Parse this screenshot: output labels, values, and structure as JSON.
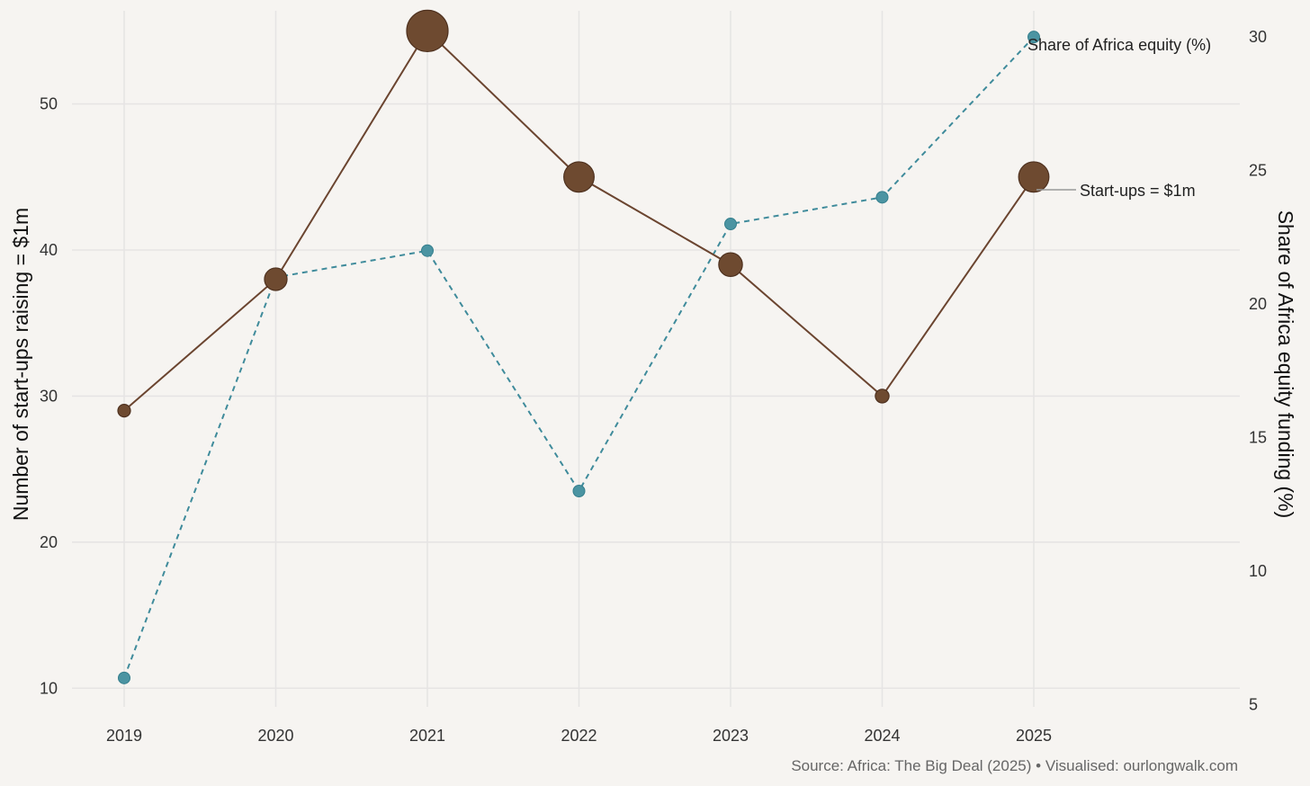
{
  "chart_data": {
    "type": "line",
    "x": [
      "2019",
      "2020",
      "2021",
      "2022",
      "2023",
      "2024",
      "2025"
    ],
    "series": [
      {
        "name": "Start-ups = $1m",
        "axis": "left",
        "style": "solid",
        "color": "#6b4530",
        "marker_color": "#6e4a30",
        "marker_size_encodes_value": true,
        "values": [
          29,
          38,
          55,
          45,
          39,
          30,
          45
        ]
      },
      {
        "name": "Share of Africa equity (%)",
        "axis": "right",
        "style": "dashed",
        "color": "#3f8b9b",
        "marker_color": "#4b94a2",
        "values": [
          6,
          21,
          22,
          13,
          23,
          24,
          30
        ]
      }
    ],
    "y_left": {
      "label": "Number of start-ups raising = $1m",
      "ticks": [
        10,
        20,
        30,
        40,
        50
      ],
      "range": [
        8.6,
        56.5
      ]
    },
    "y_right": {
      "label": "Share of Africa equity funding (%)",
      "ticks": [
        5,
        10,
        15,
        20,
        25,
        30
      ],
      "range": [
        4.85,
        31.05
      ]
    },
    "grid": true,
    "legend": "direct labels at right",
    "caption": "Source: Africa: The Big Deal (2025) • Visualised: ourlongwalk.com"
  }
}
